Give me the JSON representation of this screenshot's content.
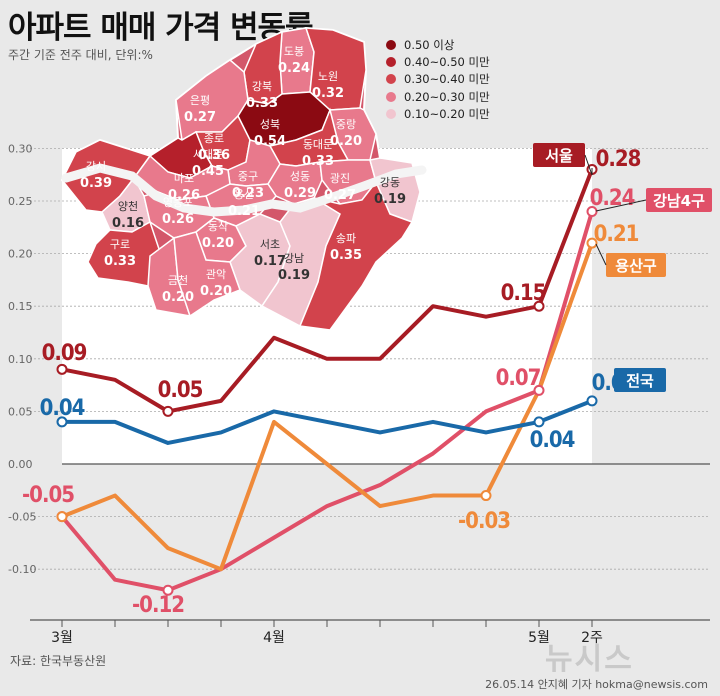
{
  "header": {
    "title": "아파트 매매 가격 변동률",
    "subtitle": "주간 기준 전주 대비, 단위:%"
  },
  "legend": [
    {
      "label": "0.50 이상",
      "color": "#8b0a12"
    },
    {
      "label": "0.40~0.50 미만",
      "color": "#b5202b"
    },
    {
      "label": "0.30~0.40 미만",
      "color": "#d2434c"
    },
    {
      "label": "0.20~0.30 미만",
      "color": "#e8798c"
    },
    {
      "label": "0.10~0.20 미만",
      "color": "#f1c5cf"
    }
  ],
  "map": {
    "districts": [
      {
        "name": "도봉",
        "value": "0.24",
        "color": "#e8798c"
      },
      {
        "name": "노원",
        "value": "0.32",
        "color": "#d2434c"
      },
      {
        "name": "강북",
        "value": "0.33",
        "color": "#d2434c"
      },
      {
        "name": "은평",
        "value": "0.27",
        "color": "#e8798c"
      },
      {
        "name": "성북",
        "value": "0.54",
        "color": "#8b0a12"
      },
      {
        "name": "중랑",
        "value": "0.20",
        "color": "#e8798c"
      },
      {
        "name": "종로",
        "value": "0.36",
        "color": "#d2434c"
      },
      {
        "name": "동대문",
        "value": "0.33",
        "color": "#d2434c"
      },
      {
        "name": "서대문",
        "value": "0.45",
        "color": "#b5202b"
      },
      {
        "name": "중구",
        "value": "0.23",
        "color": "#e8798c"
      },
      {
        "name": "성동",
        "value": "0.29",
        "color": "#e8798c"
      },
      {
        "name": "광진",
        "value": "0.27",
        "color": "#e8798c"
      },
      {
        "name": "강서",
        "value": "0.39",
        "color": "#d2434c"
      },
      {
        "name": "마포",
        "value": "0.26",
        "color": "#e8798c"
      },
      {
        "name": "용산",
        "value": "0.21",
        "color": "#e8798c"
      },
      {
        "name": "강동",
        "value": "0.19",
        "color": "#f1c5cf"
      },
      {
        "name": "양천",
        "value": "0.16",
        "color": "#f1c5cf"
      },
      {
        "name": "영등포",
        "value": "0.26",
        "color": "#e8798c"
      },
      {
        "name": "동작",
        "value": "0.20",
        "color": "#e8798c"
      },
      {
        "name": "구로",
        "value": "0.33",
        "color": "#d2434c"
      },
      {
        "name": "서초",
        "value": "0.17",
        "color": "#f1c5cf"
      },
      {
        "name": "강남",
        "value": "0.19",
        "color": "#f1c5cf"
      },
      {
        "name": "송파",
        "value": "0.35",
        "color": "#d2434c"
      },
      {
        "name": "금천",
        "value": "0.20",
        "color": "#e8798c"
      },
      {
        "name": "관악",
        "value": "0.20",
        "color": "#e8798c"
      }
    ]
  },
  "chart_data": {
    "type": "line",
    "x": [
      "3월",
      "",
      "",
      "",
      "4월",
      "",
      "",
      "",
      "",
      "5월",
      "2주"
    ],
    "ylim": [
      -0.15,
      0.3
    ],
    "yticks": [
      "-0.10",
      "-0.05",
      "0.00",
      "0.05",
      "0.10",
      "0.15",
      "0.20",
      "0.25",
      "0.30"
    ],
    "series": [
      {
        "name": "서울",
        "color": "#a71c24",
        "values": [
          0.09,
          0.08,
          0.05,
          0.06,
          0.12,
          0.1,
          0.1,
          0.15,
          0.14,
          0.15,
          0.28
        ]
      },
      {
        "name": "강남4구",
        "color": "#e05068",
        "values": [
          -0.05,
          -0.11,
          -0.12,
          -0.1,
          -0.07,
          -0.04,
          -0.02,
          0.01,
          0.05,
          0.07,
          0.24
        ]
      },
      {
        "name": "용산구",
        "color": "#ef8a3a",
        "values": [
          -0.05,
          -0.03,
          -0.08,
          -0.1,
          0.04,
          0.0,
          -0.04,
          -0.03,
          -0.03,
          0.07,
          0.21
        ]
      },
      {
        "name": "전국",
        "color": "#1969a8",
        "values": [
          0.04,
          0.04,
          0.02,
          0.03,
          0.05,
          0.04,
          0.03,
          0.04,
          0.03,
          0.04,
          0.06
        ]
      }
    ],
    "data_labels": [
      "0.09",
      "0.05",
      "0.15",
      "0.28",
      "0.04",
      "0.04",
      "0.06",
      "-0.05",
      "-0.12",
      "0.07",
      "0.24",
      "-0.03",
      "0.21"
    ]
  },
  "footer": {
    "source": "자료: 한국부동산원",
    "credit": "26.05.14 안지혜 기자 hokma@newsis.com",
    "watermark": "뉴시스"
  }
}
